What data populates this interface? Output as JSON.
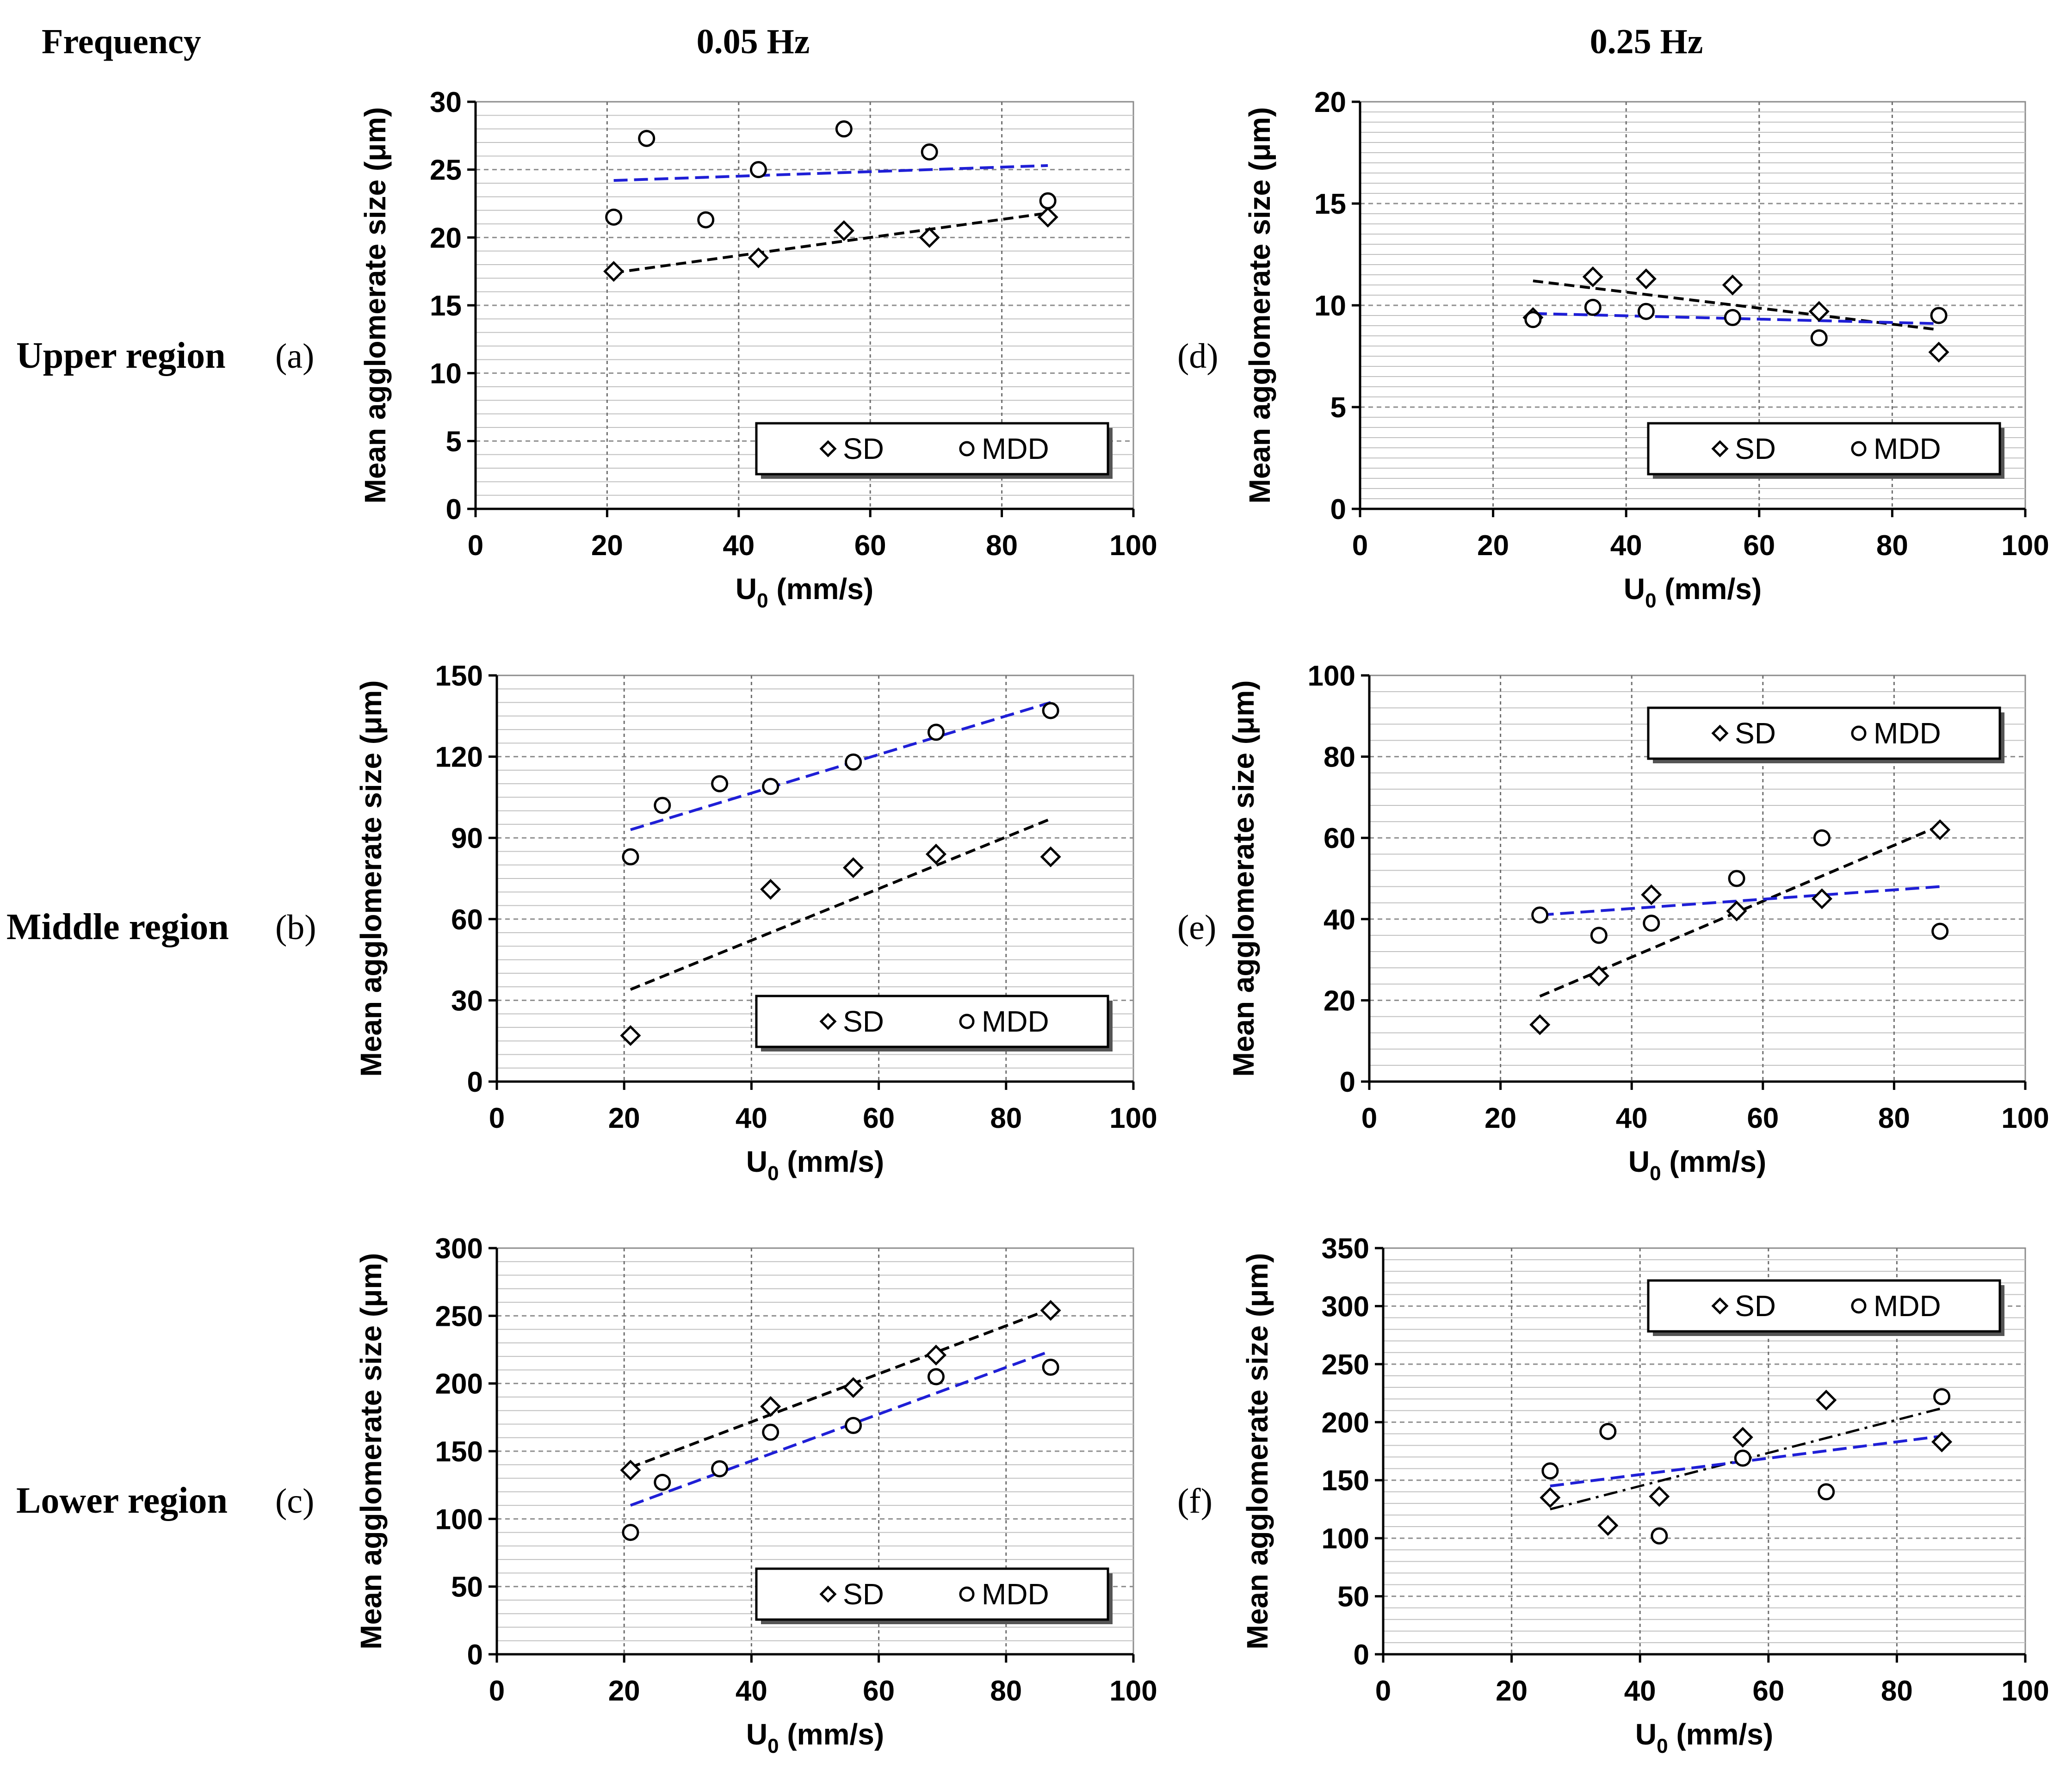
{
  "headers": {
    "frequency": "Frequency",
    "col1": "0.05 Hz",
    "col2": "0.25 Hz"
  },
  "rows": [
    {
      "label": "Upper region",
      "left_panel": "(a)",
      "right_panel": "(d)"
    },
    {
      "label": "Middle region",
      "left_panel": "(b)",
      "right_panel": "(e)"
    },
    {
      "label": "Lower region",
      "left_panel": "(c)",
      "right_panel": "(f)"
    }
  ],
  "chart_data": [
    {
      "id": "a",
      "type": "scatter",
      "xlabel_main": "U",
      "xlabel_sub": "0",
      "xlabel_unit": " (mm/s)",
      "ylabel": "Mean agglomerate size (μm)",
      "xlim": [
        0,
        100
      ],
      "ylim": [
        0,
        30
      ],
      "xticks": [
        0,
        20,
        40,
        60,
        80,
        100
      ],
      "yticks": [
        0,
        5,
        10,
        15,
        20,
        25,
        30
      ],
      "minor_y_step": 1,
      "legend": {
        "position": "bottom-right",
        "entries": [
          {
            "symbol": "◇",
            "label": "SD"
          },
          {
            "symbol": "○",
            "label": "MDD"
          }
        ]
      },
      "series": [
        {
          "name": "SD",
          "marker": "diamond",
          "x": [
            21,
            43,
            56,
            69,
            87
          ],
          "y": [
            17.5,
            18.5,
            20.5,
            20,
            21.5
          ]
        },
        {
          "name": "MDD",
          "marker": "circle",
          "x": [
            21,
            26,
            35,
            43,
            56,
            69,
            87
          ],
          "y": [
            21.5,
            27.3,
            21.3,
            25,
            28,
            26.3,
            22.7
          ]
        }
      ],
      "trendlines": [
        {
          "series": "SD",
          "style": "black-dashed",
          "x": [
            21,
            87
          ],
          "y": [
            17.4,
            21.8
          ]
        },
        {
          "series": "MDD",
          "style": "blue-dashed",
          "x": [
            21,
            87
          ],
          "y": [
            24.2,
            25.3
          ]
        }
      ]
    },
    {
      "id": "b",
      "type": "scatter",
      "xlabel_main": "U",
      "xlabel_sub": "0",
      "xlabel_unit": " (mm/s)",
      "ylabel": "Mean agglomerate size (μm)",
      "xlim": [
        0,
        100
      ],
      "ylim": [
        0,
        150
      ],
      "xticks": [
        0,
        20,
        40,
        60,
        80,
        100
      ],
      "yticks": [
        0,
        30,
        60,
        90,
        120,
        150
      ],
      "minor_y_step": 5,
      "legend": {
        "position": "bottom-right",
        "entries": [
          {
            "symbol": "◇",
            "label": "SD"
          },
          {
            "symbol": "○",
            "label": "MDD"
          }
        ]
      },
      "series": [
        {
          "name": "SD",
          "marker": "diamond",
          "x": [
            21,
            43,
            56,
            69,
            87
          ],
          "y": [
            17,
            71,
            79,
            84,
            83
          ]
        },
        {
          "name": "MDD",
          "marker": "circle",
          "x": [
            21,
            26,
            35,
            43,
            56,
            69,
            87
          ],
          "y": [
            83,
            102,
            110,
            109,
            118,
            129,
            137
          ]
        }
      ],
      "trendlines": [
        {
          "series": "SD",
          "style": "black-dashed",
          "x": [
            21,
            87
          ],
          "y": [
            34,
            97
          ]
        },
        {
          "series": "MDD",
          "style": "blue-dashed",
          "x": [
            21,
            87
          ],
          "y": [
            93,
            140
          ]
        }
      ]
    },
    {
      "id": "c",
      "type": "scatter",
      "xlabel_main": "U",
      "xlabel_sub": "0",
      "xlabel_unit": " (mm/s)",
      "ylabel": "Mean agglomerate size (μm)",
      "xlim": [
        0,
        100
      ],
      "ylim": [
        0,
        300
      ],
      "xticks": [
        0,
        20,
        40,
        60,
        80,
        100
      ],
      "yticks": [
        0,
        50,
        100,
        150,
        200,
        250,
        300
      ],
      "minor_y_step": 10,
      "legend": {
        "position": "bottom-right",
        "entries": [
          {
            "symbol": "◇",
            "label": "SD"
          },
          {
            "symbol": "○",
            "label": "MDD"
          }
        ]
      },
      "series": [
        {
          "name": "SD",
          "marker": "diamond",
          "x": [
            21,
            43,
            56,
            69,
            87
          ],
          "y": [
            136,
            183,
            197,
            221,
            254
          ]
        },
        {
          "name": "MDD",
          "marker": "circle",
          "x": [
            21,
            26,
            35,
            43,
            56,
            69,
            87
          ],
          "y": [
            90,
            127,
            137,
            164,
            169,
            205,
            212
          ]
        }
      ],
      "trendlines": [
        {
          "series": "SD",
          "style": "black-dashed",
          "x": [
            21,
            87
          ],
          "y": [
            138,
            255
          ]
        },
        {
          "series": "MDD",
          "style": "blue-dashed",
          "x": [
            21,
            87
          ],
          "y": [
            110,
            224
          ]
        }
      ]
    },
    {
      "id": "d",
      "type": "scatter",
      "xlabel_main": "U",
      "xlabel_sub": "0",
      "xlabel_unit": " (mm/s)",
      "ylabel": "Mean agglomerate size (μm)",
      "xlim": [
        0,
        100
      ],
      "ylim": [
        0,
        20
      ],
      "xticks": [
        0,
        20,
        40,
        60,
        80,
        100
      ],
      "yticks": [
        0,
        5,
        10,
        15,
        20
      ],
      "minor_y_step": 0.5,
      "legend": {
        "position": "bottom-right",
        "entries": [
          {
            "symbol": "◇",
            "label": "SD"
          },
          {
            "symbol": "○",
            "label": "MDD"
          }
        ]
      },
      "series": [
        {
          "name": "SD",
          "marker": "diamond",
          "x": [
            26,
            35,
            43,
            56,
            69,
            87
          ],
          "y": [
            9.4,
            11.4,
            11.3,
            11,
            9.7,
            7.7
          ]
        },
        {
          "name": "MDD",
          "marker": "circle",
          "x": [
            26,
            35,
            43,
            56,
            69,
            87
          ],
          "y": [
            9.3,
            9.9,
            9.7,
            9.4,
            8.4,
            9.5
          ]
        }
      ],
      "trendlines": [
        {
          "series": "SD",
          "style": "black-dashed",
          "x": [
            26,
            87
          ],
          "y": [
            11.2,
            8.8
          ]
        },
        {
          "series": "MDD",
          "style": "blue-dashed",
          "x": [
            26,
            87
          ],
          "y": [
            9.6,
            9.1
          ]
        }
      ]
    },
    {
      "id": "e",
      "type": "scatter",
      "xlabel_main": "U",
      "xlabel_sub": "0",
      "xlabel_unit": " (mm/s)",
      "ylabel": "Mean agglomerate size (μm)",
      "xlim": [
        0,
        100
      ],
      "ylim": [
        0,
        100
      ],
      "xticks": [
        0,
        20,
        40,
        60,
        80,
        100
      ],
      "yticks": [
        0,
        20,
        40,
        60,
        80,
        100
      ],
      "minor_y_step": 4,
      "legend": {
        "position": "top-right",
        "entries": [
          {
            "symbol": "◇",
            "label": "SD"
          },
          {
            "symbol": "○",
            "label": "MDD"
          }
        ]
      },
      "series": [
        {
          "name": "SD",
          "marker": "diamond",
          "x": [
            26,
            35,
            43,
            56,
            69,
            87
          ],
          "y": [
            14,
            26,
            46,
            42,
            45,
            62
          ]
        },
        {
          "name": "MDD",
          "marker": "circle",
          "x": [
            26,
            35,
            43,
            56,
            69,
            87
          ],
          "y": [
            41,
            36,
            39,
            50,
            60,
            37
          ]
        }
      ],
      "trendlines": [
        {
          "series": "SD",
          "style": "black-dashed",
          "x": [
            26,
            87
          ],
          "y": [
            21,
            63
          ]
        },
        {
          "series": "MDD",
          "style": "blue-dashed",
          "x": [
            26,
            87
          ],
          "y": [
            41,
            48
          ]
        }
      ]
    },
    {
      "id": "f",
      "type": "scatter",
      "xlabel_main": "U",
      "xlabel_sub": "0",
      "xlabel_unit": " (mm/s)",
      "ylabel": "Mean agglomerate size (μm)",
      "xlim": [
        0,
        100
      ],
      "ylim": [
        0,
        350
      ],
      "xticks": [
        0,
        20,
        40,
        60,
        80,
        100
      ],
      "yticks": [
        0,
        50,
        100,
        150,
        200,
        250,
        300,
        350
      ],
      "minor_y_step": 10,
      "legend": {
        "position": "top-right",
        "entries": [
          {
            "symbol": "◇",
            "label": "SD"
          },
          {
            "symbol": "○",
            "label": "MDD"
          }
        ]
      },
      "series": [
        {
          "name": "SD",
          "marker": "diamond",
          "x": [
            26,
            35,
            43,
            56,
            69,
            87
          ],
          "y": [
            135,
            111,
            136,
            187,
            219,
            183
          ]
        },
        {
          "name": "MDD",
          "marker": "circle",
          "x": [
            26,
            35,
            43,
            56,
            69,
            87
          ],
          "y": [
            158,
            192,
            102,
            169,
            140,
            222
          ]
        }
      ],
      "trendlines": [
        {
          "series": "SD",
          "style": "black-dashdot",
          "x": [
            26,
            87
          ],
          "y": [
            125,
            212
          ]
        },
        {
          "series": "MDD",
          "style": "blue-dashed",
          "x": [
            26,
            87
          ],
          "y": [
            145,
            188
          ]
        }
      ]
    }
  ]
}
